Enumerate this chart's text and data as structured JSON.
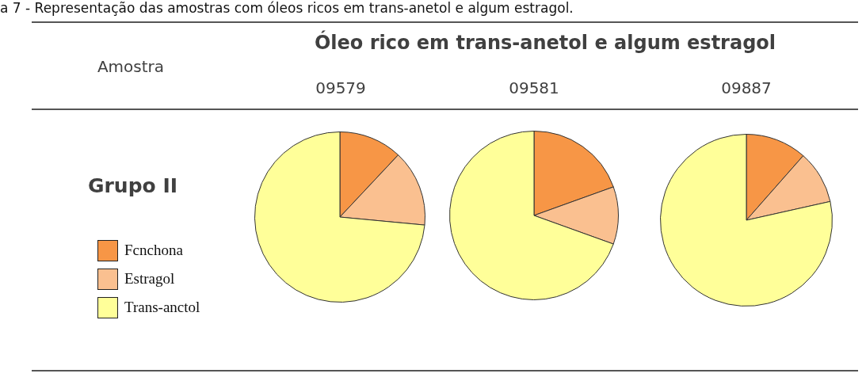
{
  "chart_data": [
    {
      "type": "other",
      "title": "a 7 - Representação das amostras com óleos ricos em trans-anetol e algum estragol.",
      "subtitle": "Óleo rico em trans-anetol e algum estragol",
      "annotations": [
        "Amostra",
        "Grupo II"
      ]
    },
    {
      "type": "pie",
      "title": "09579",
      "categories": [
        "Fcnchona",
        "Estragol",
        "Trans-anctol"
      ],
      "values": [
        12,
        14.5,
        73.5
      ],
      "colors": [
        "#f79646",
        "#fac090",
        "#ffff99"
      ],
      "legend": "left"
    },
    {
      "type": "pie",
      "title": "09581",
      "categories": [
        null,
        null,
        null
      ],
      "values": [
        19.5,
        11,
        69.5
      ],
      "colors": [
        "#f79646",
        "#fac090",
        "#ffff99"
      ]
    },
    {
      "type": "pie",
      "title": "09887",
      "categories": [
        null,
        null,
        null
      ],
      "values": [
        11.5,
        10,
        78.5
      ],
      "colors": [
        "#f79646",
        "#fac090",
        "#ffff99"
      ]
    }
  ]
}
